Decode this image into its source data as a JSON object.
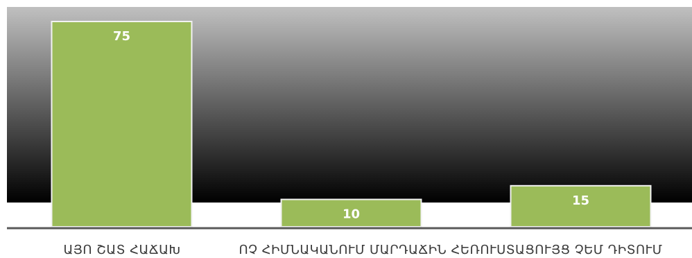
{
  "chart_data": {
    "type": "bar",
    "categories": [
      "ԱՅՈ ՇԱՏ ՀԱՃԱԽ",
      "ՈՉ ՀԻՄՆԱԿԱՆՈՒՄ ՄԱՐԴԱՃԻՆ ՀԵՌՈՒՍՏԱՑՈՒՅՑ ՉԵՄ ԴԻՏՈՒՄ",
      ""
    ],
    "values": [
      75,
      10,
      15
    ],
    "data_labels": [
      "75",
      "10",
      "15"
    ],
    "title": "",
    "xlabel": "",
    "ylabel": "",
    "ylim": [
      0,
      80
    ],
    "grid": false,
    "legend": "none",
    "colors": {
      "bar_fill": "#9bbb59",
      "bar_stroke": "#f2f2f2",
      "background_top": "#c0c0c0",
      "background_bottom": "#000000",
      "axis_line": "#595959",
      "label_text": "#ffffff",
      "category_text": "#3a3a3a"
    }
  }
}
